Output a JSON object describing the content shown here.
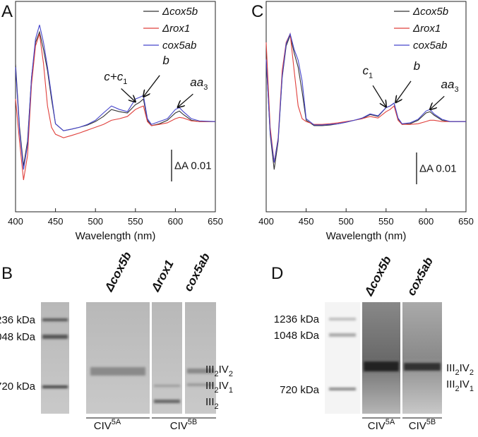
{
  "chart_data": [
    {
      "type": "line",
      "panel": "A",
      "xlabel": "Wavelength (nm)",
      "x": [
        400,
        405,
        410,
        415,
        420,
        425,
        430,
        435,
        440,
        445,
        450,
        460,
        470,
        480,
        490,
        500,
        510,
        520,
        530,
        540,
        550,
        555,
        560,
        565,
        570,
        580,
        590,
        600,
        605,
        610,
        620,
        630,
        650
      ],
      "xlim": [
        400,
        650
      ],
      "xticks": [
        400,
        450,
        500,
        550,
        600,
        650
      ],
      "ylim": [
        -0.0284,
        0.0378
      ],
      "legend": "upper right",
      "series": [
        {
          "name": "Δcox5b",
          "color": "#333333",
          "values": [
            0.0182,
            -0.0018,
            -0.014,
            -0.0062,
            0.0138,
            0.0249,
            0.0282,
            0.0227,
            0.016,
            0.0071,
            -0.0007,
            -0.0029,
            -0.0024,
            -0.0018,
            -0.0011,
            0,
            0.0016,
            0.0038,
            0.0031,
            0.0027,
            0.0053,
            0.006,
            0.0071,
            0.0004,
            -0.0013,
            -0.0007,
            0.0004,
            0.0027,
            0.0033,
            0.0022,
            0.0004,
            0,
            0
          ]
        },
        {
          "name": "Δrox1",
          "color": "#e0403c",
          "values": [
            0.0071,
            -0.0062,
            -0.0184,
            -0.0107,
            0.0116,
            0.0238,
            0.0276,
            0.0182,
            0.0049,
            -0.0018,
            -0.004,
            -0.0051,
            -0.0044,
            -0.0036,
            -0.0027,
            -0.0018,
            -0.0009,
            0.0004,
            0.0009,
            0.0016,
            0.0038,
            0.0044,
            0.0049,
            0,
            -0.0013,
            -0.0009,
            -0.0004,
            0.0009,
            0.0013,
            0.0011,
            0.0002,
            0,
            0
          ]
        },
        {
          "name": "cox5ab",
          "color": "#4646cc",
          "values": [
            0.0171,
            -0.0029,
            -0.0151,
            -0.0073,
            0.0138,
            0.026,
            0.0304,
            0.0249,
            0.0171,
            0.0082,
            -0.0007,
            -0.0029,
            -0.0024,
            -0.0018,
            -0.0009,
            0.0004,
            0.0027,
            0.0049,
            0.0038,
            0.0031,
            0.0071,
            0.0076,
            0.0082,
            0.0009,
            -0.0009,
            0,
            0.0009,
            0.0038,
            0.0044,
            0.0031,
            0.0009,
            0.0002,
            0
          ]
        }
      ],
      "annotations": [
        {
          "text": "c+c1",
          "x": 550,
          "y": 0.0062
        },
        {
          "text": "b",
          "x": 560,
          "y": 0.0078
        },
        {
          "text": "aa3",
          "x": 603,
          "y": 0.0045
        }
      ],
      "scale_bar": {
        "value": 0.01,
        "label": "ΔA 0.01"
      }
    },
    {
      "type": "line",
      "panel": "C",
      "xlabel": "Wavelength (nm)",
      "x": [
        400,
        405,
        410,
        415,
        420,
        425,
        430,
        435,
        440,
        445,
        450,
        460,
        470,
        480,
        490,
        500,
        510,
        520,
        530,
        540,
        550,
        555,
        560,
        565,
        570,
        580,
        590,
        600,
        605,
        610,
        620,
        630,
        650
      ],
      "xlim": [
        400,
        650
      ],
      "xticks": [
        400,
        450,
        500,
        550,
        600,
        650
      ],
      "ylim": [
        -0.0284,
        0.0378
      ],
      "legend": "upper right",
      "series": [
        {
          "name": "Δcox5b",
          "color": "#333333",
          "values": [
            0.02,
            -0.004,
            -0.0151,
            -0.0062,
            0.0138,
            0.0238,
            0.0271,
            0.0216,
            0.0171,
            0.0093,
            0.0004,
            -0.0013,
            -0.0013,
            -0.0011,
            -0.0007,
            -0.0002,
            0.0004,
            0.0009,
            0.0022,
            0.0016,
            0.0044,
            0.0049,
            0.0058,
            0.0009,
            -0.0009,
            -0.0007,
            0.0004,
            0.0027,
            0.0031,
            0.002,
            0.0004,
            0,
            0
          ]
        },
        {
          "name": "Δrox1",
          "color": "#e0403c",
          "values": [
            0.0249,
            -0.0018,
            -0.0129,
            -0.0051,
            0.016,
            0.0249,
            0.0276,
            0.016,
            0.0049,
            0.0009,
            0,
            -0.0009,
            -0.0009,
            -0.0007,
            -0.0004,
            0,
            0.0004,
            0.0009,
            0.0016,
            0.0011,
            0.0031,
            0.0038,
            0.0049,
            0.0004,
            -0.0009,
            -0.0009,
            -0.0007,
            0,
            0.0004,
            0.0004,
            0,
            0,
            0
          ]
        },
        {
          "name": "cox5ab",
          "color": "#4646cc",
          "values": [
            0.0195,
            -0.0035,
            -0.0129,
            -0.0055,
            0.0142,
            0.0245,
            0.0276,
            0.0227,
            0.0193,
            0.0127,
            0.0009,
            -0.0011,
            -0.0011,
            -0.0009,
            -0.0007,
            -0.0002,
            0.0004,
            0.0011,
            0.0024,
            0.0018,
            0.0044,
            0.0049,
            0.0058,
            0.0011,
            -0.0007,
            -0.0004,
            0.0007,
            0.0033,
            0.0038,
            0.0024,
            0.0007,
            0,
            0
          ]
        }
      ],
      "annotations": [
        {
          "text": "c1",
          "x": 550,
          "y": 0.0046
        },
        {
          "text": "b",
          "x": 562,
          "y": 0.006
        },
        {
          "text": "aa3",
          "x": 605,
          "y": 0.0038
        }
      ],
      "scale_bar": {
        "value": 0.01,
        "label": "ΔA 0.01"
      }
    }
  ],
  "blots": [
    {
      "panel": "B",
      "lanes": [
        "Δcox5b",
        "Δrox1",
        "cox5ab"
      ],
      "markers": [
        "1236 kDa",
        "1048 kDa",
        "720 kDa"
      ],
      "bands": [
        "III2IV2",
        "III2IV1",
        "III2"
      ],
      "groups": [
        "CIV5A",
        "CIV5B"
      ]
    },
    {
      "panel": "D",
      "lanes": [
        "Δcox5b",
        "cox5ab"
      ],
      "markers": [
        "1236 kDa",
        "1048 kDa",
        "720 kDa"
      ],
      "bands": [
        "III2IV2",
        "III2IV1"
      ],
      "groups": [
        "CIV5A",
        "CIV5B"
      ]
    }
  ]
}
